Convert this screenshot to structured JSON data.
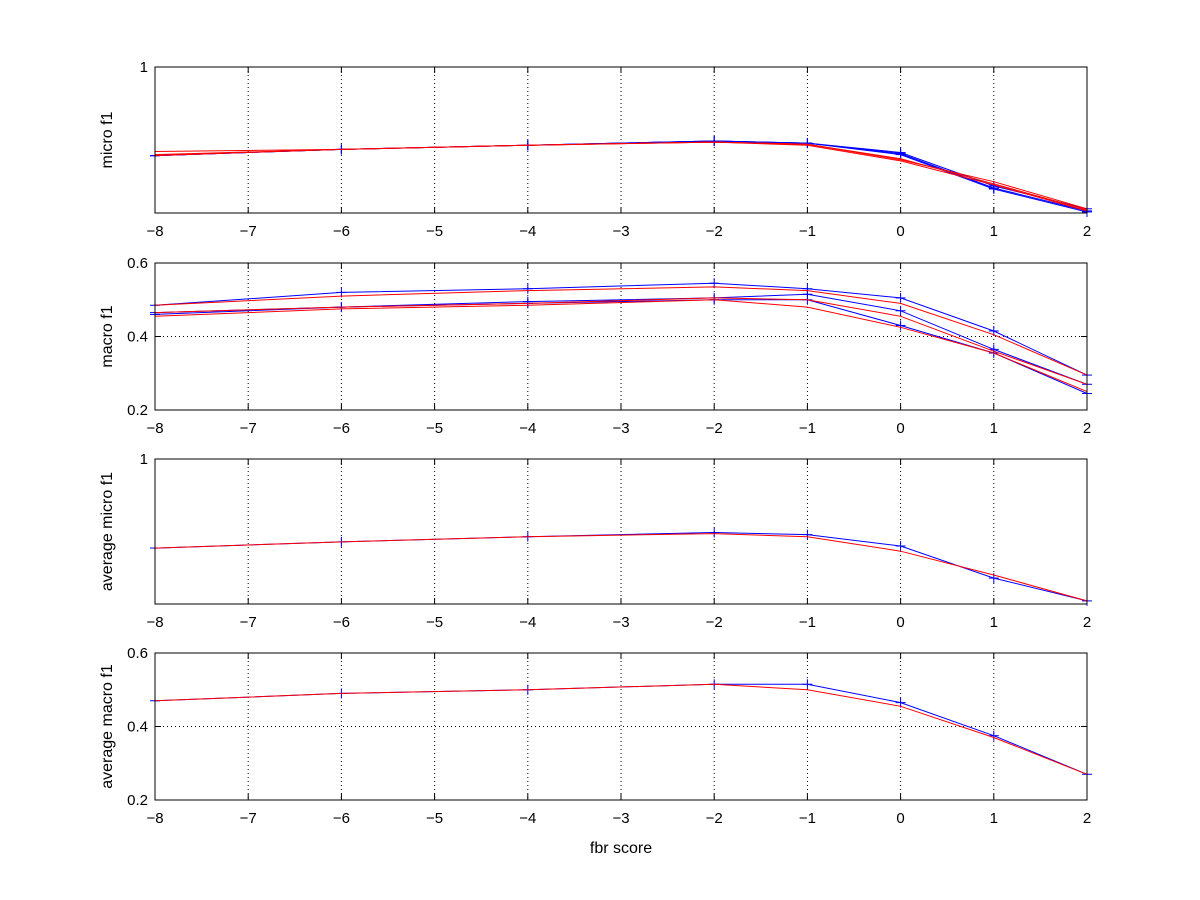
{
  "chart_data": [
    {
      "type": "line",
      "ylabel": "micro f1",
      "xlim": [
        -8,
        2
      ],
      "ylim": [
        0.3,
        1
      ],
      "xticks": [
        "-8",
        "-7",
        "-6",
        "-5",
        "-4",
        "-3",
        "-2",
        "-1",
        "0",
        "1",
        "2"
      ],
      "yticks": [
        {
          "value": 1,
          "label": "1"
        }
      ],
      "grid": true,
      "x": [
        -8,
        -6,
        -4,
        -2,
        -1,
        0,
        1,
        2
      ],
      "series": [
        {
          "color": "#0000ff",
          "marker": "+",
          "values": [
            0.575,
            0.605,
            0.625,
            0.645,
            0.635,
            0.585,
            0.42,
            0.31
          ]
        },
        {
          "color": "#0000ff",
          "marker": "+",
          "values": [
            0.575,
            0.605,
            0.625,
            0.645,
            0.635,
            0.59,
            0.43,
            0.32
          ]
        },
        {
          "color": "#0000ff",
          "marker": "+",
          "values": [
            0.575,
            0.605,
            0.625,
            0.645,
            0.635,
            0.58,
            0.415,
            0.305
          ]
        },
        {
          "color": "#ff0000",
          "marker": "",
          "values": [
            0.595,
            0.605,
            0.625,
            0.64,
            0.63,
            0.56,
            0.44,
            0.315
          ]
        },
        {
          "color": "#ff0000",
          "marker": "",
          "values": [
            0.575,
            0.605,
            0.625,
            0.64,
            0.625,
            0.55,
            0.435,
            0.31
          ]
        },
        {
          "color": "#ff0000",
          "marker": "",
          "values": [
            0.58,
            0.605,
            0.625,
            0.64,
            0.63,
            0.555,
            0.45,
            0.32
          ]
        }
      ]
    },
    {
      "type": "line",
      "ylabel": "macro f1",
      "xlim": [
        -8,
        2
      ],
      "ylim": [
        0.2,
        0.6
      ],
      "xticks": [
        "-8",
        "-7",
        "-6",
        "-5",
        "-4",
        "-3",
        "-2",
        "-1",
        "0",
        "1",
        "2"
      ],
      "yticks": [
        {
          "value": 0.2,
          "label": "0.2"
        },
        {
          "value": 0.4,
          "label": "0.4"
        },
        {
          "value": 0.6,
          "label": "0.6"
        }
      ],
      "grid": true,
      "x": [
        -8,
        -6,
        -4,
        -2,
        -1,
        0,
        1,
        2
      ],
      "series": [
        {
          "color": "#0000ff",
          "marker": "+",
          "values": [
            0.485,
            0.52,
            0.53,
            0.545,
            0.53,
            0.505,
            0.415,
            0.295
          ]
        },
        {
          "color": "#0000ff",
          "marker": "+",
          "values": [
            0.465,
            0.48,
            0.495,
            0.505,
            0.515,
            0.47,
            0.365,
            0.27
          ]
        },
        {
          "color": "#0000ff",
          "marker": "+",
          "values": [
            0.46,
            0.48,
            0.49,
            0.5,
            0.5,
            0.43,
            0.355,
            0.245
          ]
        },
        {
          "color": "#ff0000",
          "marker": "",
          "values": [
            0.485,
            0.51,
            0.525,
            0.535,
            0.525,
            0.49,
            0.405,
            0.295
          ]
        },
        {
          "color": "#ff0000",
          "marker": "",
          "values": [
            0.465,
            0.48,
            0.49,
            0.505,
            0.5,
            0.455,
            0.36,
            0.27
          ]
        },
        {
          "color": "#ff0000",
          "marker": "",
          "values": [
            0.455,
            0.475,
            0.485,
            0.5,
            0.48,
            0.425,
            0.355,
            0.25
          ]
        }
      ]
    },
    {
      "type": "line",
      "ylabel": "average micro f1",
      "xlim": [
        -8,
        2
      ],
      "ylim": [
        0.3,
        1
      ],
      "xticks": [
        "-8",
        "-7",
        "-6",
        "-5",
        "-4",
        "-3",
        "-2",
        "-1",
        "0",
        "1",
        "2"
      ],
      "yticks": [
        {
          "value": 1,
          "label": "1"
        }
      ],
      "grid": true,
      "x": [
        -8,
        -6,
        -4,
        -2,
        -1,
        0,
        1,
        2
      ],
      "series": [
        {
          "color": "#0000ff",
          "marker": "+",
          "values": [
            0.57,
            0.6,
            0.625,
            0.645,
            0.635,
            0.58,
            0.425,
            0.315
          ]
        },
        {
          "color": "#ff0000",
          "marker": "",
          "values": [
            0.57,
            0.6,
            0.625,
            0.64,
            0.625,
            0.555,
            0.44,
            0.315
          ]
        }
      ]
    },
    {
      "type": "line",
      "ylabel": "average macro f1",
      "xlabel": "fbr score",
      "xlim": [
        -8,
        2
      ],
      "ylim": [
        0.2,
        0.6
      ],
      "xticks": [
        "-8",
        "-7",
        "-6",
        "-5",
        "-4",
        "-3",
        "-2",
        "-1",
        "0",
        "1",
        "2"
      ],
      "yticks": [
        {
          "value": 0.2,
          "label": "0.2"
        },
        {
          "value": 0.4,
          "label": "0.4"
        },
        {
          "value": 0.6,
          "label": "0.6"
        }
      ],
      "grid": true,
      "x": [
        -8,
        -6,
        -4,
        -2,
        -1,
        0,
        1,
        2
      ],
      "series": [
        {
          "color": "#0000ff",
          "marker": "+",
          "values": [
            0.47,
            0.49,
            0.5,
            0.515,
            0.515,
            0.465,
            0.375,
            0.27
          ]
        },
        {
          "color": "#ff0000",
          "marker": "",
          "values": [
            0.47,
            0.49,
            0.5,
            0.515,
            0.5,
            0.455,
            0.37,
            0.27
          ]
        }
      ]
    }
  ]
}
